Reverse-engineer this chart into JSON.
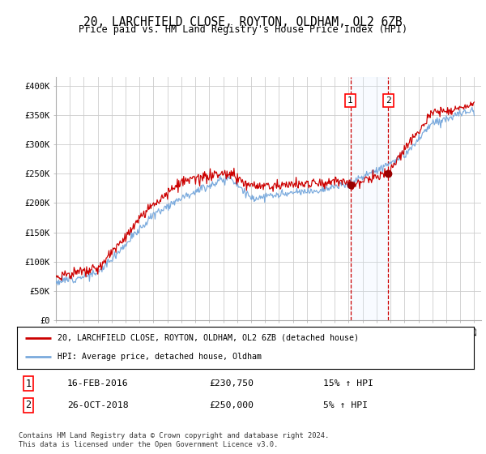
{
  "title": "20, LARCHFIELD CLOSE, ROYTON, OLDHAM, OL2 6ZB",
  "subtitle": "Price paid vs. HM Land Registry's House Price Index (HPI)",
  "yticks": [
    0,
    50000,
    100000,
    150000,
    200000,
    250000,
    300000,
    350000,
    400000
  ],
  "ytick_labels": [
    "£0",
    "£50K",
    "£100K",
    "£150K",
    "£200K",
    "£250K",
    "£300K",
    "£350K",
    "£400K"
  ],
  "ylim": [
    0,
    415000
  ],
  "sale1_date": 2016.12,
  "sale1_price": 230750,
  "sale1_label": "1",
  "sale1_text": "16-FEB-2016",
  "sale1_amount": "£230,750",
  "sale1_hpi": "15% ↑ HPI",
  "sale2_date": 2018.82,
  "sale2_price": 250000,
  "sale2_label": "2",
  "sale2_text": "26-OCT-2018",
  "sale2_amount": "£250,000",
  "sale2_hpi": "5% ↑ HPI",
  "hpi_color": "#7aaadd",
  "price_color": "#cc0000",
  "marker_color": "#990000",
  "vline_color": "#cc0000",
  "shade_color": "#ddeeff",
  "legend_label1": "20, LARCHFIELD CLOSE, ROYTON, OLDHAM, OL2 6ZB (detached house)",
  "legend_label2": "HPI: Average price, detached house, Oldham",
  "footer": "Contains HM Land Registry data © Crown copyright and database right 2024.\nThis data is licensed under the Open Government Licence v3.0.",
  "background_color": "#ffffff",
  "grid_color": "#cccccc"
}
